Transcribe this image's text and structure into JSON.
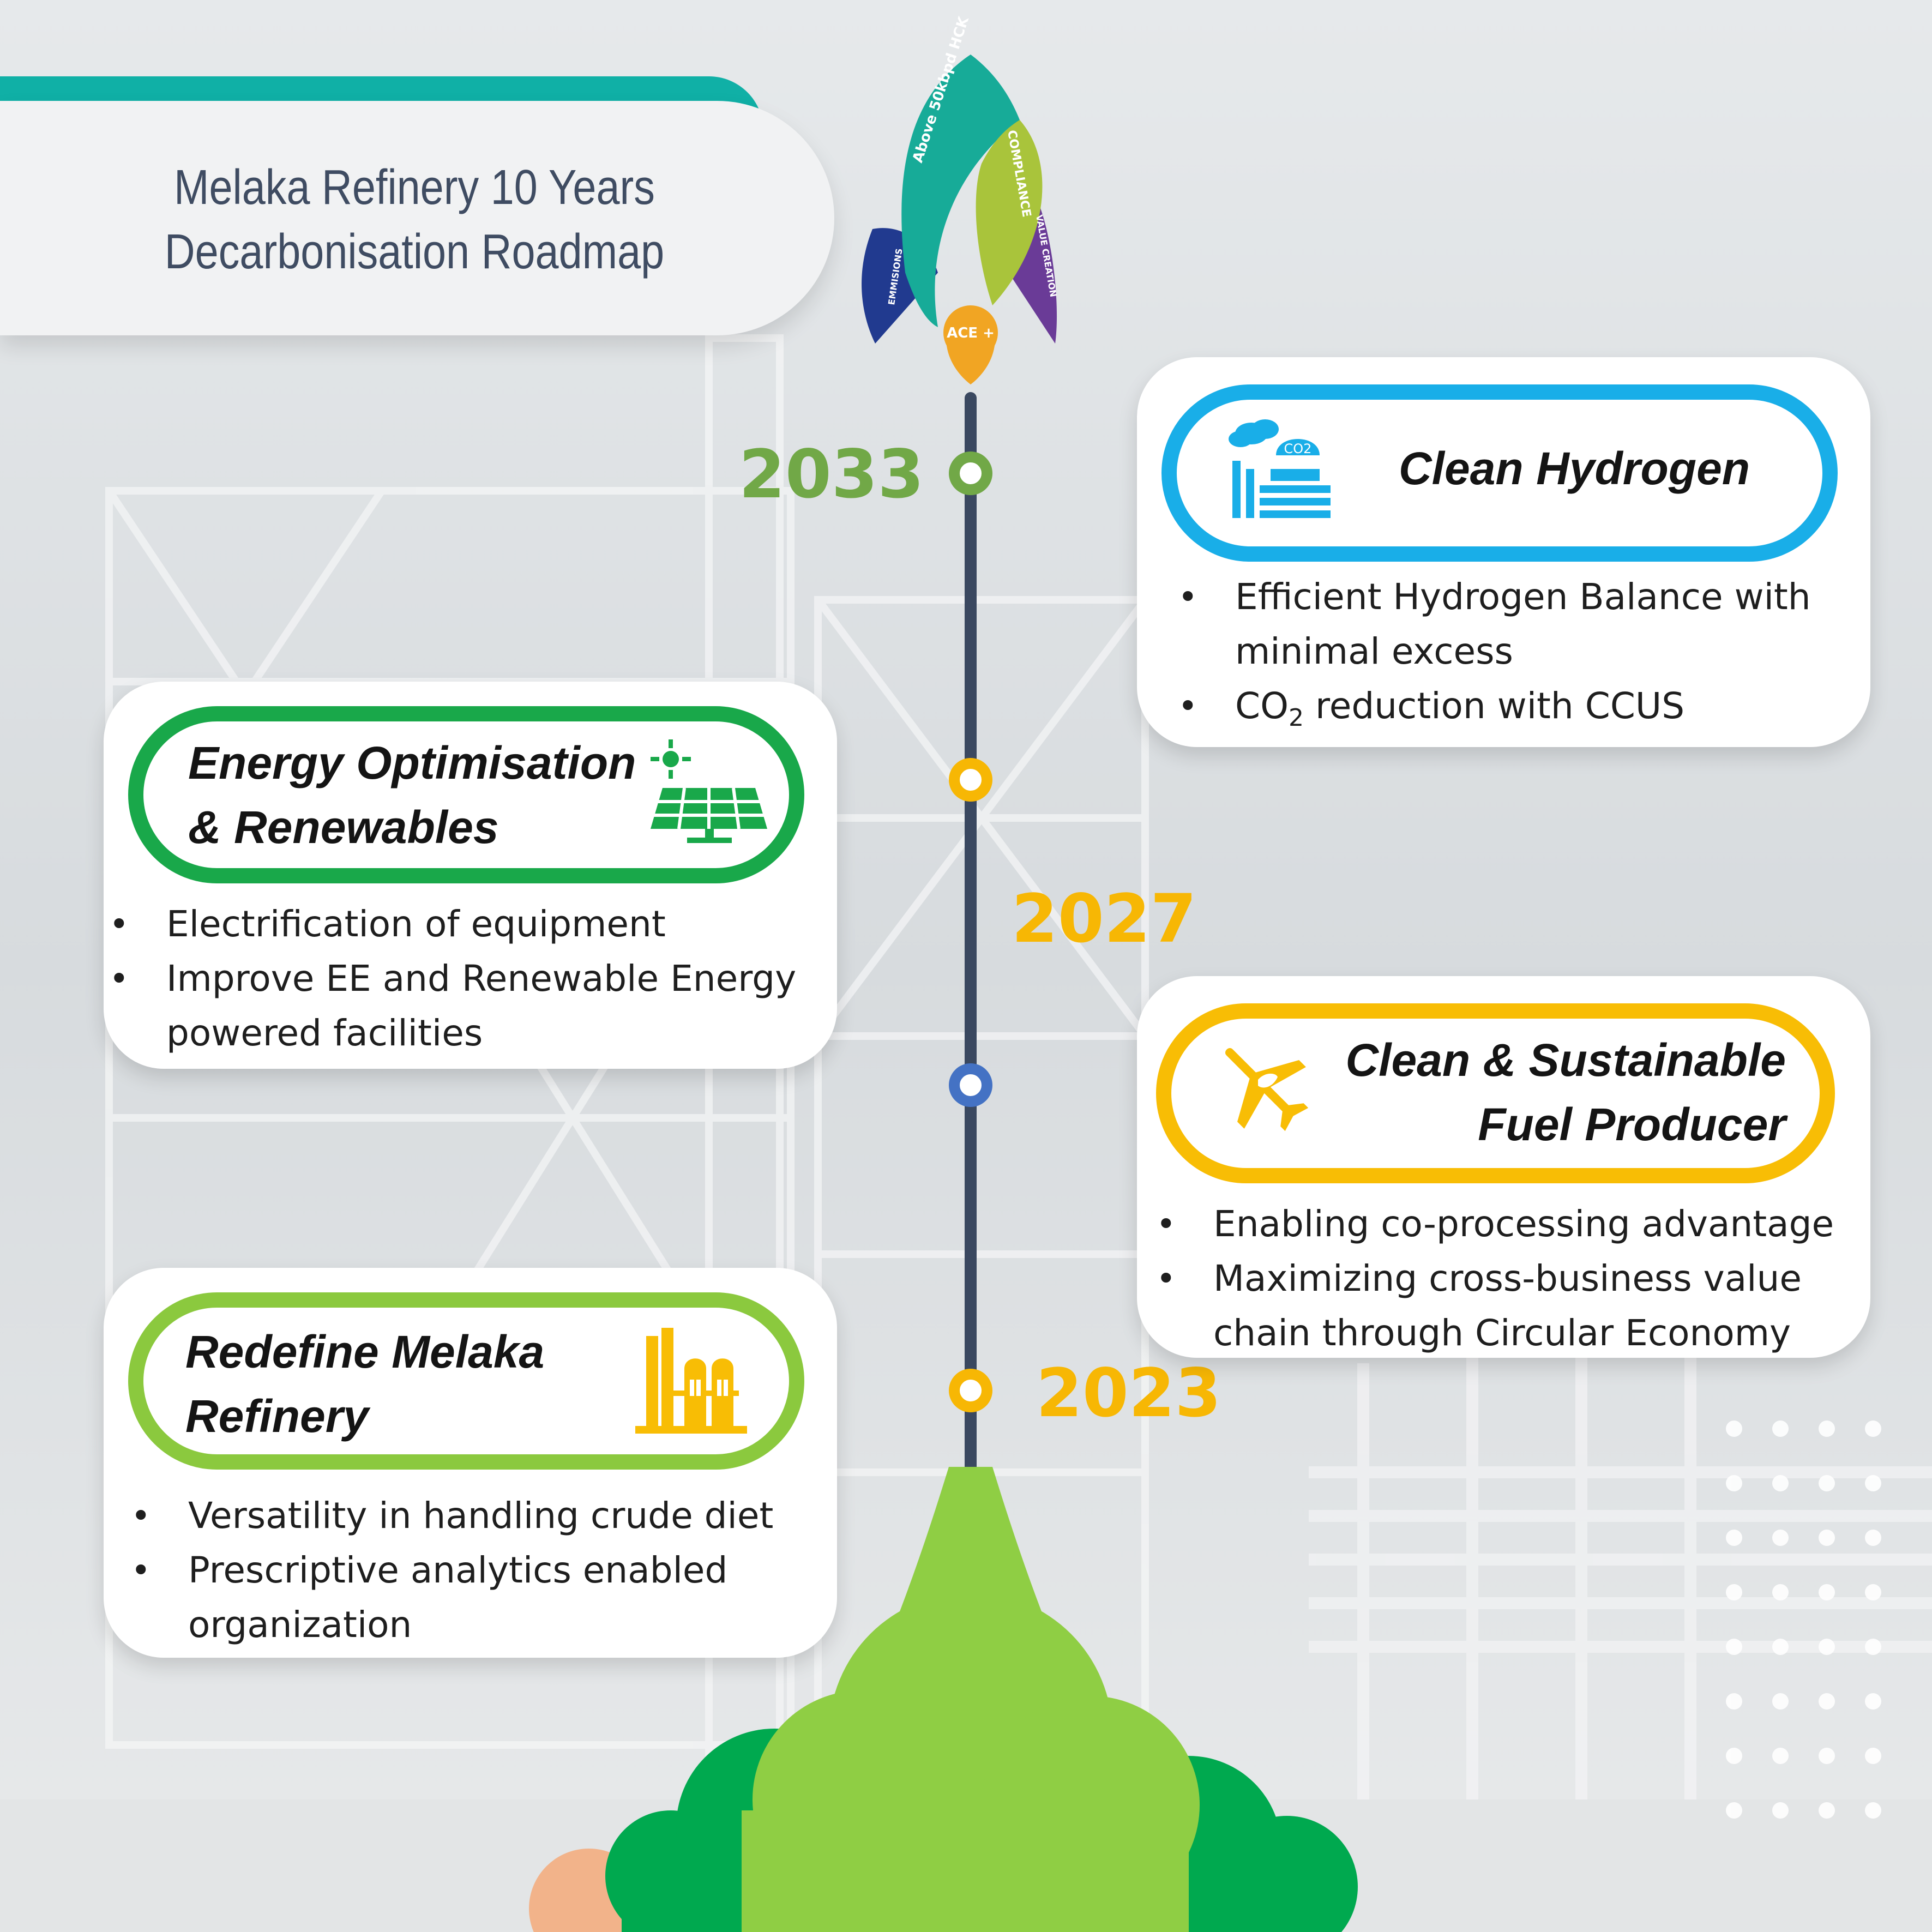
{
  "title": {
    "line1": "Melaka Refinery 10 Years",
    "line2": "Decarbonisation Roadmap"
  },
  "rocket": {
    "fins": [
      "Above 50kbpd HCK",
      "COMPLIANCE",
      "EMMISIONS",
      "VALUE CREATION"
    ],
    "badge": "ACE +"
  },
  "timeline": {
    "years": [
      "2033",
      "2027",
      "2023"
    ]
  },
  "cards": {
    "clean_hydrogen": {
      "title": "Clean Hydrogen",
      "bullet1": "Efficient Hydrogen Balance with",
      "bullet1_cont": "minimal excess",
      "bullet2_pre": "CO",
      "bullet2_sub": "2",
      "bullet2_post": " reduction with CCUS",
      "icon_text": "CO2"
    },
    "energy": {
      "title_line1": "Energy Optimisation",
      "title_line2": "& Renewables",
      "bullet1": "Electrification of equipment",
      "bullet2": "Improve EE and Renewable Energy",
      "bullet2_cont": "powered facilities"
    },
    "fuel": {
      "title_line1": "Clean & Sustainable",
      "title_line2": "Fuel Producer",
      "bullet1": "Enabling co-processing advantage",
      "bullet2": "Maximizing cross-business value",
      "bullet2_cont": "chain through Circular Economy"
    },
    "redefine": {
      "title_line1": "Redefine Melaka",
      "title_line2": "Refinery",
      "bullet1": "Versatility in handling crude diet",
      "bullet2": "Prescriptive analytics enabled",
      "bullet2_cont": "organization"
    }
  },
  "colors": {
    "teal": "#10b0a6",
    "blue_ring": "#19aee8",
    "green_ring": "#19a84a",
    "yellow_ring": "#f8bd05",
    "light_green_ring": "#8bc93e",
    "year_green": "#71a847",
    "year_yellow": "#f7b704",
    "timeline": "#3a4860",
    "node_blue": "#4472c4",
    "title_text": "#3f4c62"
  }
}
